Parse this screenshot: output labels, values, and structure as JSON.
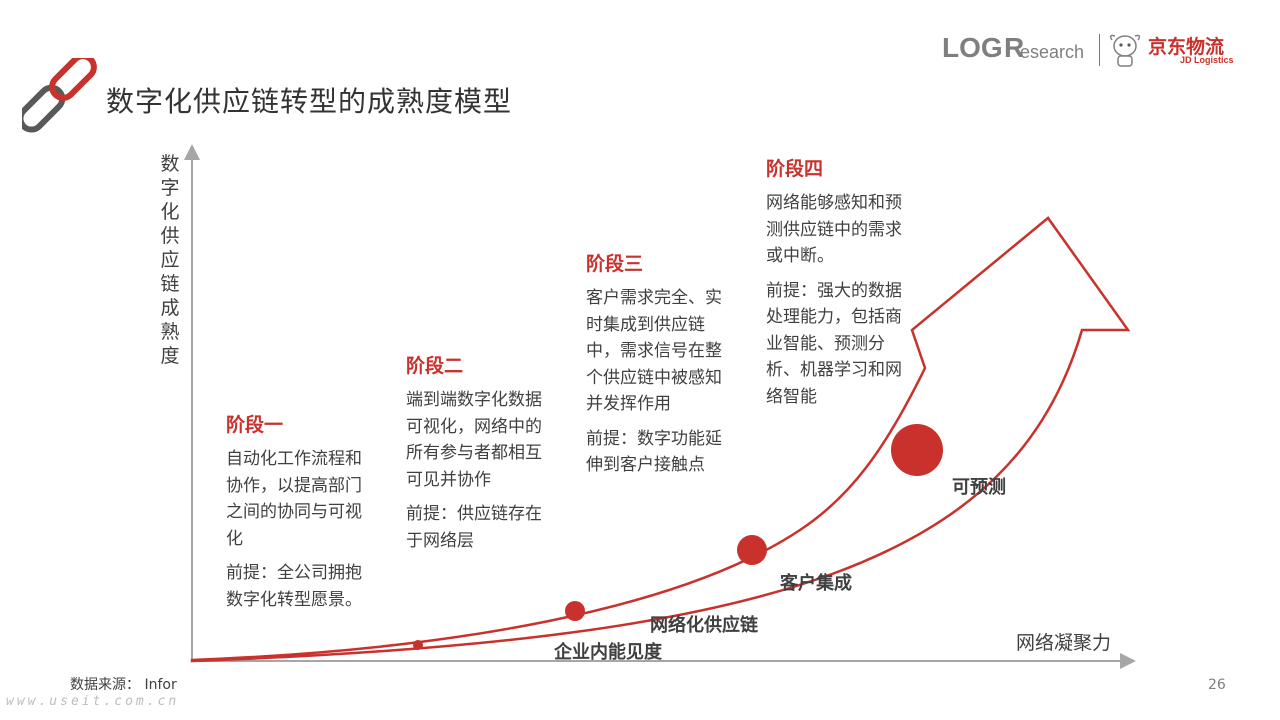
{
  "header": {
    "title": "数字化供应链转型的成熟度模型",
    "title_icon": "chain-link-icon",
    "logo": {
      "log_text": "LOG",
      "r_text": "R",
      "research_text": "esearch",
      "jd_cn": "京东物流",
      "jd_en": "JD Logistics",
      "mascot_icon": "jd-dog-mascot-icon"
    }
  },
  "axes": {
    "y_label": "数字化供应链成熟度",
    "x_label": "网络凝聚力"
  },
  "stages": [
    {
      "title": "阶段一",
      "desc": "自动化工作流程和协作，以提高部门之间的协同与可视化",
      "premise": "前提：全公司拥抱数字化转型愿景。"
    },
    {
      "title": "阶段二",
      "desc": "端到端数字化数据可视化，网络中的所有参与者都相互可见并协作",
      "premise": "前提：供应链存在于网络层"
    },
    {
      "title": "阶段三",
      "desc": "客户需求完全、实时集成到供应链中，需求信号在整个供应链中被感知并发挥作用",
      "premise": "前提：数字功能延伸到客户接触点"
    },
    {
      "title": "阶段四",
      "desc": "网络能够感知和预测供应链中的需求或中断。",
      "premise": "前提：强大的数据处理能力，包括商业智能、预测分析、机器学习和网络智能"
    }
  ],
  "points": [
    {
      "label": "企业内能见度"
    },
    {
      "label": "网络化供应链"
    },
    {
      "label": "客户集成"
    },
    {
      "label": "可预测"
    }
  ],
  "footer": {
    "source": "数据来源： Infor",
    "page_number": "26",
    "watermark": "www.useit.com.cn"
  },
  "colors": {
    "accent": "#c9312c",
    "axis": "#a6a6a6",
    "text": "#404040"
  }
}
